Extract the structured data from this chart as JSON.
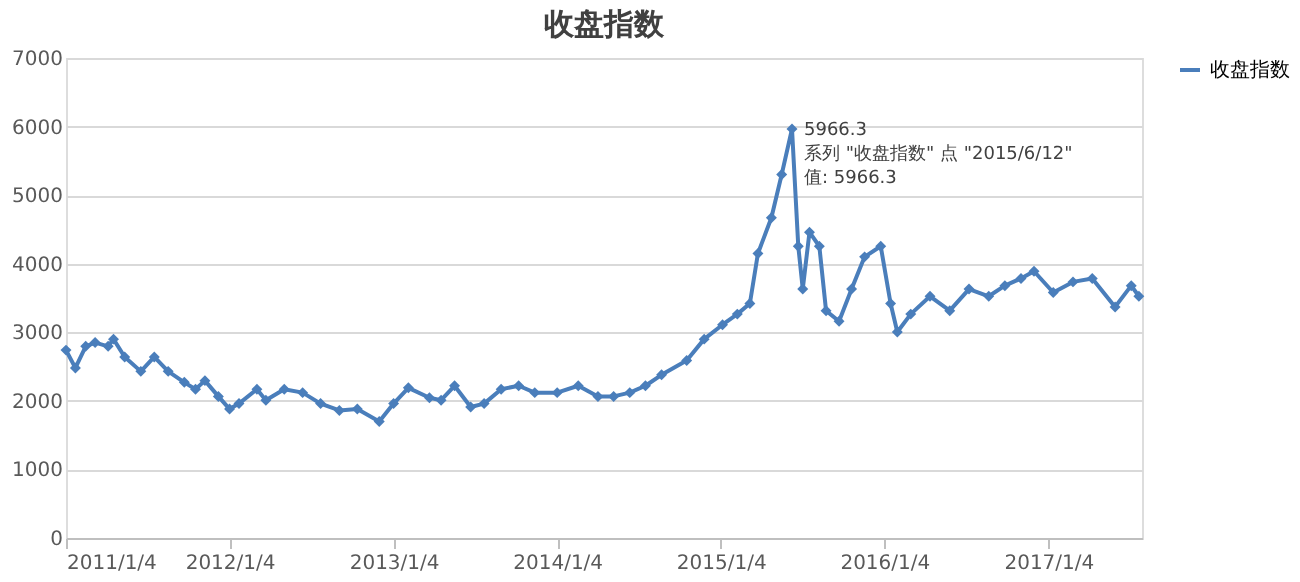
{
  "chart_data": {
    "type": "line",
    "title": "收盘指数",
    "x": [
      "2011-01-04",
      "2011-01-25",
      "2011-02-17",
      "2011-03-10",
      "2011-04-08",
      "2011-04-20",
      "2011-05-15",
      "2011-06-20",
      "2011-07-20",
      "2011-08-20",
      "2011-09-25",
      "2011-10-20",
      "2011-11-10",
      "2011-12-10",
      "2012-01-04",
      "2012-01-25",
      "2012-03-05",
      "2012-03-25",
      "2012-05-05",
      "2012-06-15",
      "2012-07-25",
      "2012-09-05",
      "2012-10-15",
      "2012-12-03",
      "2013-01-04",
      "2013-02-06",
      "2013-03-25",
      "2013-04-20",
      "2013-05-20",
      "2013-06-25",
      "2013-07-25",
      "2013-09-01",
      "2013-10-10",
      "2013-11-15",
      "2014-01-04",
      "2014-02-20",
      "2014-04-05",
      "2014-05-10",
      "2014-06-15",
      "2014-07-20",
      "2014-08-25",
      "2014-10-20",
      "2014-11-28",
      "2015-01-08",
      "2015-02-10",
      "2015-03-10",
      "2015-03-28",
      "2015-04-27",
      "2015-05-20",
      "2015-06-12",
      "2015-06-26",
      "2015-07-06",
      "2015-07-21",
      "2015-08-12",
      "2015-08-27",
      "2015-09-25",
      "2015-10-23",
      "2015-11-21",
      "2015-12-27",
      "2016-01-18",
      "2016-02-02",
      "2016-03-03",
      "2016-04-15",
      "2016-05-29",
      "2016-07-11",
      "2016-08-24",
      "2016-09-29",
      "2016-11-04",
      "2016-12-03",
      "2017-01-15",
      "2017-02-28",
      "2017-04-12",
      "2017-06-02",
      "2017-07-08",
      "2017-07-25"
    ],
    "series": [
      {
        "name": "收盘指数",
        "color": "#4a7ebb",
        "values": [
          2740,
          2480,
          2795,
          2850,
          2795,
          2900,
          2640,
          2430,
          2640,
          2430,
          2270,
          2170,
          2295,
          2065,
          1880,
          1960,
          2170,
          2010,
          2170,
          2120,
          1960,
          1860,
          1880,
          1700,
          1960,
          2190,
          2045,
          2010,
          2220,
          1910,
          1960,
          2170,
          2220,
          2120,
          2120,
          2220,
          2065,
          2065,
          2120,
          2220,
          2380,
          2590,
          2900,
          3110,
          3265,
          3420,
          4150,
          4670,
          5300,
          5966.3,
          4255,
          3630,
          4460,
          4255,
          3315,
          3160,
          3630,
          4100,
          4255,
          3420,
          3005,
          3265,
          3525,
          3315,
          3630,
          3525,
          3680,
          3785,
          3890,
          3580,
          3735,
          3785,
          3370,
          3680,
          3525
        ]
      }
    ],
    "xlim": [
      "2011-01-04",
      "2017-08-01"
    ],
    "xticks": [
      {
        "value": "2011-01-04",
        "label": "2011/1/4"
      },
      {
        "value": "2012-01-04",
        "label": "2012/1/4"
      },
      {
        "value": "2013-01-04",
        "label": "2013/1/4"
      },
      {
        "value": "2014-01-04",
        "label": "2014/1/4"
      },
      {
        "value": "2015-01-04",
        "label": "2015/1/4"
      },
      {
        "value": "2016-01-04",
        "label": "2016/1/4"
      },
      {
        "value": "2017-01-04",
        "label": "2017/1/4"
      }
    ],
    "ylim": [
      0,
      7000
    ],
    "yticks": [
      0,
      1000,
      2000,
      3000,
      4000,
      5000,
      6000,
      7000
    ],
    "grid": "y",
    "legend": "right",
    "marker": "diamond",
    "line_style": "solid",
    "annotations": [
      {
        "text": "5966.3",
        "x": "2015-06-12",
        "y": 5966.3
      },
      {
        "text": "系列 \"收盘指数\" 点 \"2015/6/12\"",
        "x": "2015-06-12",
        "y": 5966.3
      },
      {
        "text": "值: 5966.3",
        "x": "2015-06-12",
        "y": 5966.3
      }
    ]
  }
}
